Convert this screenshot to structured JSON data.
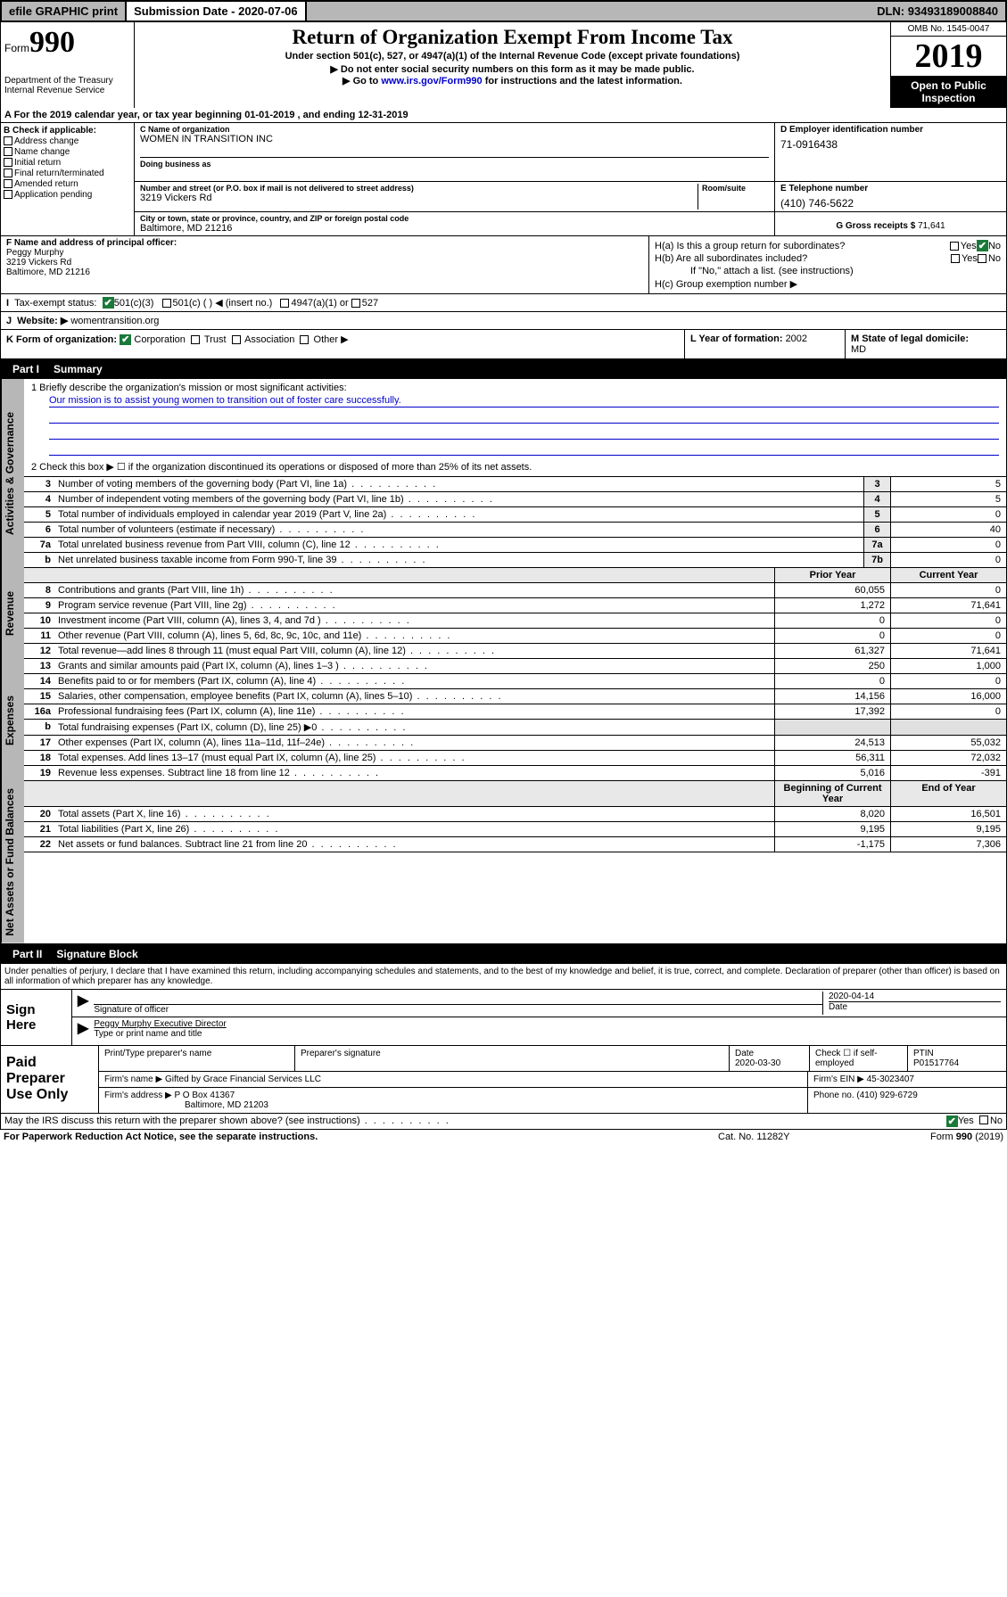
{
  "topbar": {
    "efile": "efile GRAPHIC print",
    "subdate_lbl": "Submission Date - ",
    "subdate": "2020-07-06",
    "dln_lbl": "DLN: ",
    "dln": "93493189008840"
  },
  "header": {
    "form_word": "Form",
    "form_no": "990",
    "dept": "Department of the Treasury\nInternal Revenue Service",
    "title": "Return of Organization Exempt From Income Tax",
    "subtitle": "Under section 501(c), 527, or 4947(a)(1) of the Internal Revenue Code (except private foundations)",
    "pub1": "▶ Do not enter social security numbers on this form as it may be made public.",
    "pub2_pre": "▶ Go to ",
    "pub2_link": "www.irs.gov/Form990",
    "pub2_post": " for instructions and the latest information.",
    "omb": "OMB No. 1545-0047",
    "year": "2019",
    "open": "Open to Public Inspection"
  },
  "rowA": "A For the 2019 calendar year, or tax year beginning 01-01-2019   , and ending 12-31-2019",
  "colB": {
    "hdr": "B Check if applicable:",
    "opts": [
      "Address change",
      "Name change",
      "Initial return",
      "Final return/terminated",
      "Amended return",
      "Application pending"
    ]
  },
  "name": {
    "lbl": "C Name of organization",
    "val": "WOMEN IN TRANSITION INC",
    "dba_lbl": "Doing business as",
    "addr_lbl": "Number and street (or P.O. box if mail is not delivered to street address)",
    "room_lbl": "Room/suite",
    "addr": "3219 Vickers Rd",
    "city_lbl": "City or town, state or province, country, and ZIP or foreign postal code",
    "city": "Baltimore, MD  21216"
  },
  "ein": {
    "lbl": "D Employer identification number",
    "val": "71-0916438"
  },
  "phone": {
    "lbl": "E Telephone number",
    "val": "(410) 746-5622"
  },
  "gross": {
    "lbl": "G Gross receipts $ ",
    "val": "71,641"
  },
  "officer": {
    "lbl": "F  Name and address of principal officer:",
    "name": "Peggy Murphy",
    "addr1": "3219 Vickers Rd",
    "addr2": "Baltimore, MD  21216"
  },
  "h": {
    "ha": "H(a)  Is this a group return for subordinates?",
    "hb": "H(b)  Are all subordinates included?",
    "hb2": "If \"No,\" attach a list. (see instructions)",
    "hc": "H(c)  Group exemption number ▶",
    "yes": "Yes",
    "no": "No"
  },
  "rowI": {
    "lbl": "I",
    "txt": "Tax-exempt status:",
    "o1": "501(c)(3)",
    "o2": "501(c) (  ) ◀ (insert no.)",
    "o3": "4947(a)(1) or",
    "o4": "527"
  },
  "rowJ": {
    "lbl": "J",
    "txt": "Website: ▶",
    "val": "womentransition.org"
  },
  "rowK": {
    "lbl": "K Form of organization:",
    "o1": "Corporation",
    "o2": "Trust",
    "o3": "Association",
    "o4": "Other ▶"
  },
  "rowL": {
    "lbl": "L Year of formation: ",
    "val": "2002"
  },
  "rowM": {
    "lbl": "M State of legal domicile:",
    "val": "MD"
  },
  "part1": {
    "pt": "Part I",
    "ti": "Summary"
  },
  "mission": {
    "l1": "1  Briefly describe the organization's mission or most significant activities:",
    "txt": "Our mission is to assist young women to transition out of foster care successfully.",
    "l2": "2   Check this box ▶ ☐  if the organization discontinued its operations or disposed of more than 25% of its net assets."
  },
  "sides": {
    "gov": "Activities & Governance",
    "rev": "Revenue",
    "exp": "Expenses",
    "net": "Net Assets or Fund Balances"
  },
  "lines_single": [
    {
      "n": "3",
      "d": "Number of voting members of the governing body (Part VI, line 1a)",
      "box": "3",
      "v": "5"
    },
    {
      "n": "4",
      "d": "Number of independent voting members of the governing body (Part VI, line 1b)",
      "box": "4",
      "v": "5"
    },
    {
      "n": "5",
      "d": "Total number of individuals employed in calendar year 2019 (Part V, line 2a)",
      "box": "5",
      "v": "0"
    },
    {
      "n": "6",
      "d": "Total number of volunteers (estimate if necessary)",
      "box": "6",
      "v": "40"
    },
    {
      "n": "7a",
      "d": "Total unrelated business revenue from Part VIII, column (C), line 12",
      "box": "7a",
      "v": "0"
    },
    {
      "n": "b",
      "d": "Net unrelated business taxable income from Form 990-T, line 39",
      "box": "7b",
      "v": "0"
    }
  ],
  "col_hdr": {
    "prior": "Prior Year",
    "curr": "Current Year"
  },
  "lines_rev": [
    {
      "n": "8",
      "d": "Contributions and grants (Part VIII, line 1h)",
      "p": "60,055",
      "c": "0"
    },
    {
      "n": "9",
      "d": "Program service revenue (Part VIII, line 2g)",
      "p": "1,272",
      "c": "71,641"
    },
    {
      "n": "10",
      "d": "Investment income (Part VIII, column (A), lines 3, 4, and 7d )",
      "p": "0",
      "c": "0"
    },
    {
      "n": "11",
      "d": "Other revenue (Part VIII, column (A), lines 5, 6d, 8c, 9c, 10c, and 11e)",
      "p": "0",
      "c": "0"
    },
    {
      "n": "12",
      "d": "Total revenue—add lines 8 through 11 (must equal Part VIII, column (A), line 12)",
      "p": "61,327",
      "c": "71,641"
    }
  ],
  "lines_exp": [
    {
      "n": "13",
      "d": "Grants and similar amounts paid (Part IX, column (A), lines 1–3 )",
      "p": "250",
      "c": "1,000"
    },
    {
      "n": "14",
      "d": "Benefits paid to or for members (Part IX, column (A), line 4)",
      "p": "0",
      "c": "0"
    },
    {
      "n": "15",
      "d": "Salaries, other compensation, employee benefits (Part IX, column (A), lines 5–10)",
      "p": "14,156",
      "c": "16,000"
    },
    {
      "n": "16a",
      "d": "Professional fundraising fees (Part IX, column (A), line 11e)",
      "p": "17,392",
      "c": "0"
    },
    {
      "n": "b",
      "d": "Total fundraising expenses (Part IX, column (D), line 25) ▶0",
      "p": "",
      "c": ""
    },
    {
      "n": "17",
      "d": "Other expenses (Part IX, column (A), lines 11a–11d, 11f–24e)",
      "p": "24,513",
      "c": "55,032"
    },
    {
      "n": "18",
      "d": "Total expenses. Add lines 13–17 (must equal Part IX, column (A), line 25)",
      "p": "56,311",
      "c": "72,032"
    },
    {
      "n": "19",
      "d": "Revenue less expenses. Subtract line 18 from line 12",
      "p": "5,016",
      "c": "-391"
    }
  ],
  "col_hdr2": {
    "beg": "Beginning of Current Year",
    "end": "End of Year"
  },
  "lines_net": [
    {
      "n": "20",
      "d": "Total assets (Part X, line 16)",
      "p": "8,020",
      "c": "16,501"
    },
    {
      "n": "21",
      "d": "Total liabilities (Part X, line 26)",
      "p": "9,195",
      "c": "9,195"
    },
    {
      "n": "22",
      "d": "Net assets or fund balances. Subtract line 21 from line 20",
      "p": "-1,175",
      "c": "7,306"
    }
  ],
  "part2": {
    "pt": "Part II",
    "ti": "Signature Block"
  },
  "perjury": "Under penalties of perjury, I declare that I have examined this return, including accompanying schedules and statements, and to the best of my knowledge and belief, it is true, correct, and complete. Declaration of preparer (other than officer) is based on all information of which preparer has any knowledge.",
  "sign": {
    "hdr": "Sign Here",
    "sig_lbl": "Signature of officer",
    "date": "2020-04-14",
    "date_lbl": "Date",
    "name": "Peggy Murphy  Executive Director",
    "name_lbl": "Type or print name and title"
  },
  "paid": {
    "hdr": "Paid Preparer Use Only",
    "p1": "Print/Type preparer's name",
    "p2": "Preparer's signature",
    "p3_lbl": "Date",
    "p3": "2020-03-30",
    "p4": "Check ☐ if self-employed",
    "p5_lbl": "PTIN",
    "p5": "P01517764",
    "firm_lbl": "Firm's name    ▶",
    "firm": "Gifted by Grace Financial Services LLC",
    "ein_lbl": "Firm's EIN ▶",
    "ein": "45-3023407",
    "addr_lbl": "Firm's address ▶",
    "addr1": "P O Box 41367",
    "addr2": "Baltimore, MD  21203",
    "phone_lbl": "Phone no. ",
    "phone": "(410) 929-6729"
  },
  "discuss": "May the IRS discuss this return with the preparer shown above? (see instructions)",
  "footer": {
    "pra": "For Paperwork Reduction Act Notice, see the separate instructions.",
    "cat": "Cat. No. 11282Y",
    "form": "Form 990 (2019)"
  }
}
